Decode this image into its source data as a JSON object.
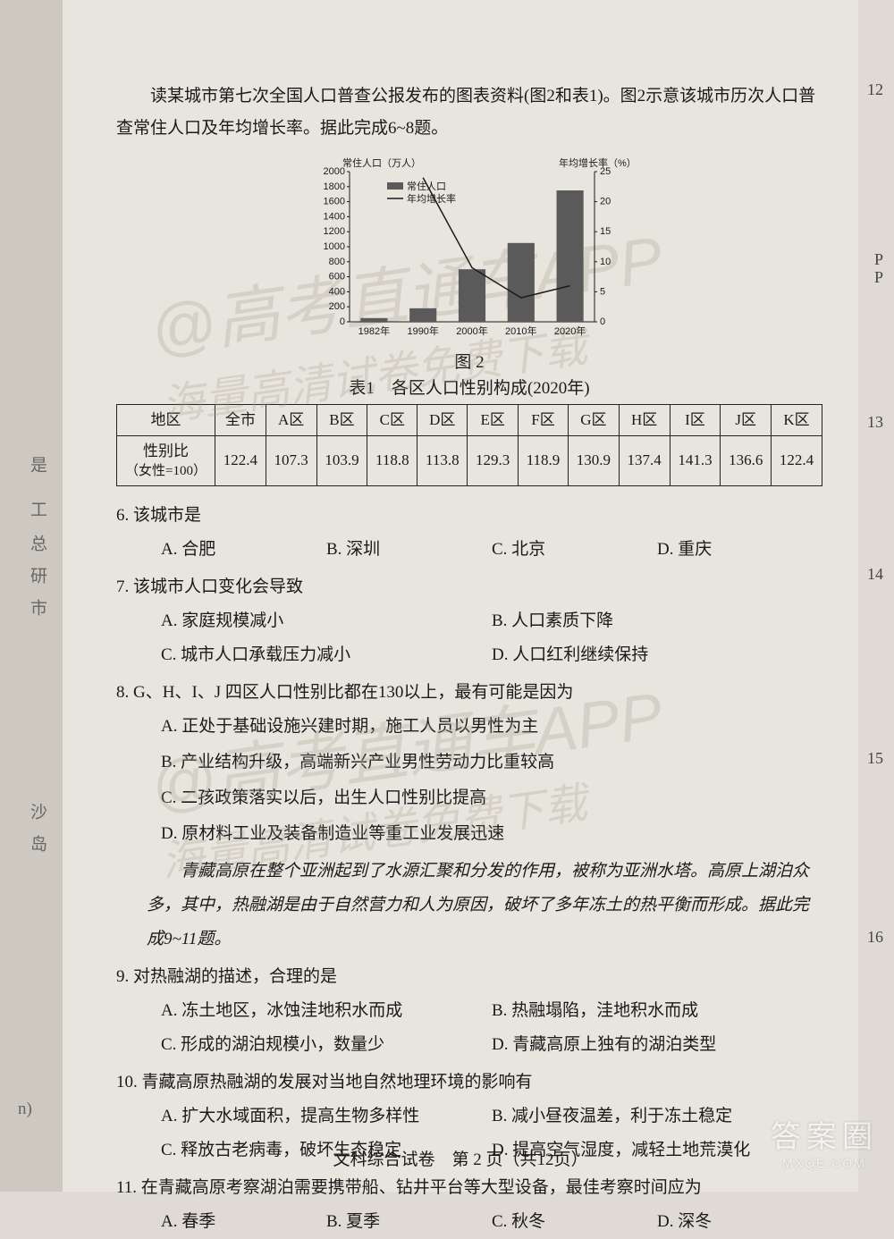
{
  "intro": "读某城市第七次全国人口普查公报发布的图表资料(图2和表1)。图2示意该城市历次人口普查常住人口及年均增长率。据此完成6~8题。",
  "chart": {
    "type": "bar-line-dual-axis",
    "y1_label": "常住人口（万人）",
    "y2_label": "年均增长率（%）",
    "legend_bar": "常住人口",
    "legend_line": "年均增长率",
    "categories": [
      "1982年",
      "1990年",
      "2000年",
      "2010年",
      "2020年"
    ],
    "bar_values": [
      50,
      180,
      700,
      1050,
      1750
    ],
    "line_values": [
      null,
      24,
      9,
      4,
      6
    ],
    "y1_ticks": [
      0,
      200,
      400,
      600,
      800,
      1000,
      1200,
      1400,
      1600,
      1800,
      2000
    ],
    "y2_ticks": [
      0,
      5,
      10,
      15,
      20,
      25
    ],
    "y1_max": 2000,
    "y2_max": 25,
    "bar_color": "#5a5a5a",
    "line_color": "#1a1a1a",
    "axis_color": "#1a1a1a",
    "background": "#e8e5de",
    "bar_width_ratio": 0.55,
    "label_fontsize": 11
  },
  "fig_caption": "图 2",
  "table_caption": "表1　各区人口性别构成(2020年)",
  "table": {
    "header_row": [
      "地区",
      "全市",
      "A区",
      "B区",
      "C区",
      "D区",
      "E区",
      "F区",
      "G区",
      "H区",
      "I区",
      "J区",
      "K区"
    ],
    "label_main": "性别比",
    "label_sub": "（女性=100）",
    "values": [
      "122.4",
      "107.3",
      "103.9",
      "118.8",
      "113.8",
      "129.3",
      "118.9",
      "130.9",
      "137.4",
      "141.3",
      "136.6",
      "122.4"
    ]
  },
  "q6": {
    "stem": "6. 该城市是",
    "A": "A. 合肥",
    "B": "B. 深圳",
    "C": "C. 北京",
    "D": "D. 重庆"
  },
  "q7": {
    "stem": "7. 该城市人口变化会导致",
    "A": "A. 家庭规模减小",
    "B": "B. 人口素质下降",
    "C": "C. 城市人口承载压力减小",
    "D": "D. 人口红利继续保持"
  },
  "q8": {
    "stem": "8. G、H、I、J 四区人口性别比都在130以上，最有可能是因为",
    "A": "A. 正处于基础设施兴建时期，施工人员以男性为主",
    "B": "B. 产业结构升级，高端新兴产业男性劳动力比重较高",
    "C": "C. 二孩政策落实以后，出生人口性别比提高",
    "D": "D. 原材料工业及装备制造业等重工业发展迅速"
  },
  "passage2": "青藏高原在整个亚洲起到了水源汇聚和分发的作用，被称为亚洲水塔。高原上湖泊众多，其中，热融湖是由于自然营力和人为原因，破坏了多年冻土的热平衡而形成。据此完成9~11题。",
  "q9": {
    "stem": "9. 对热融湖的描述，合理的是",
    "A": "A. 冻土地区，冰蚀洼地积水而成",
    "B": "B. 热融塌陷，洼地积水而成",
    "C": "C. 形成的湖泊规模小，数量少",
    "D": "D. 青藏高原上独有的湖泊类型"
  },
  "q10": {
    "stem": "10. 青藏高原热融湖的发展对当地自然地理环境的影响有",
    "A": "A. 扩大水域面积，提高生物多样性",
    "B": "B. 减小昼夜温差，利于冻土稳定",
    "C": "C. 释放古老病毒，破坏生态稳定",
    "D": "D. 提高空气湿度，减轻土地荒漠化"
  },
  "q11": {
    "stem": "11. 在青藏高原考察湖泊需要携带船、钻井平台等大型设备，最佳考察时间应为",
    "A": "A. 春季",
    "B": "B. 夏季",
    "C": "C. 秋冬",
    "D": "D. 深冬"
  },
  "footer": "文科综合试卷　第 2 页（共12页）",
  "watermarks": {
    "w1_line1": "@高考直通车APP",
    "w1_line2": "海量高清试卷免费下载",
    "w2_line1": "@高考直通车APP",
    "w2_line2": "海量高清试卷免费下载"
  },
  "right_margin_nums": [
    "12",
    "13",
    "14",
    "15",
    "16"
  ],
  "left_glyphs": [
    "是",
    "工",
    "总",
    "研",
    "市",
    "沙",
    "岛",
    "n)"
  ],
  "logo": {
    "big": "答案圈",
    "small": "MXQE.COM"
  },
  "right_fragment": [
    "P",
    "P"
  ]
}
